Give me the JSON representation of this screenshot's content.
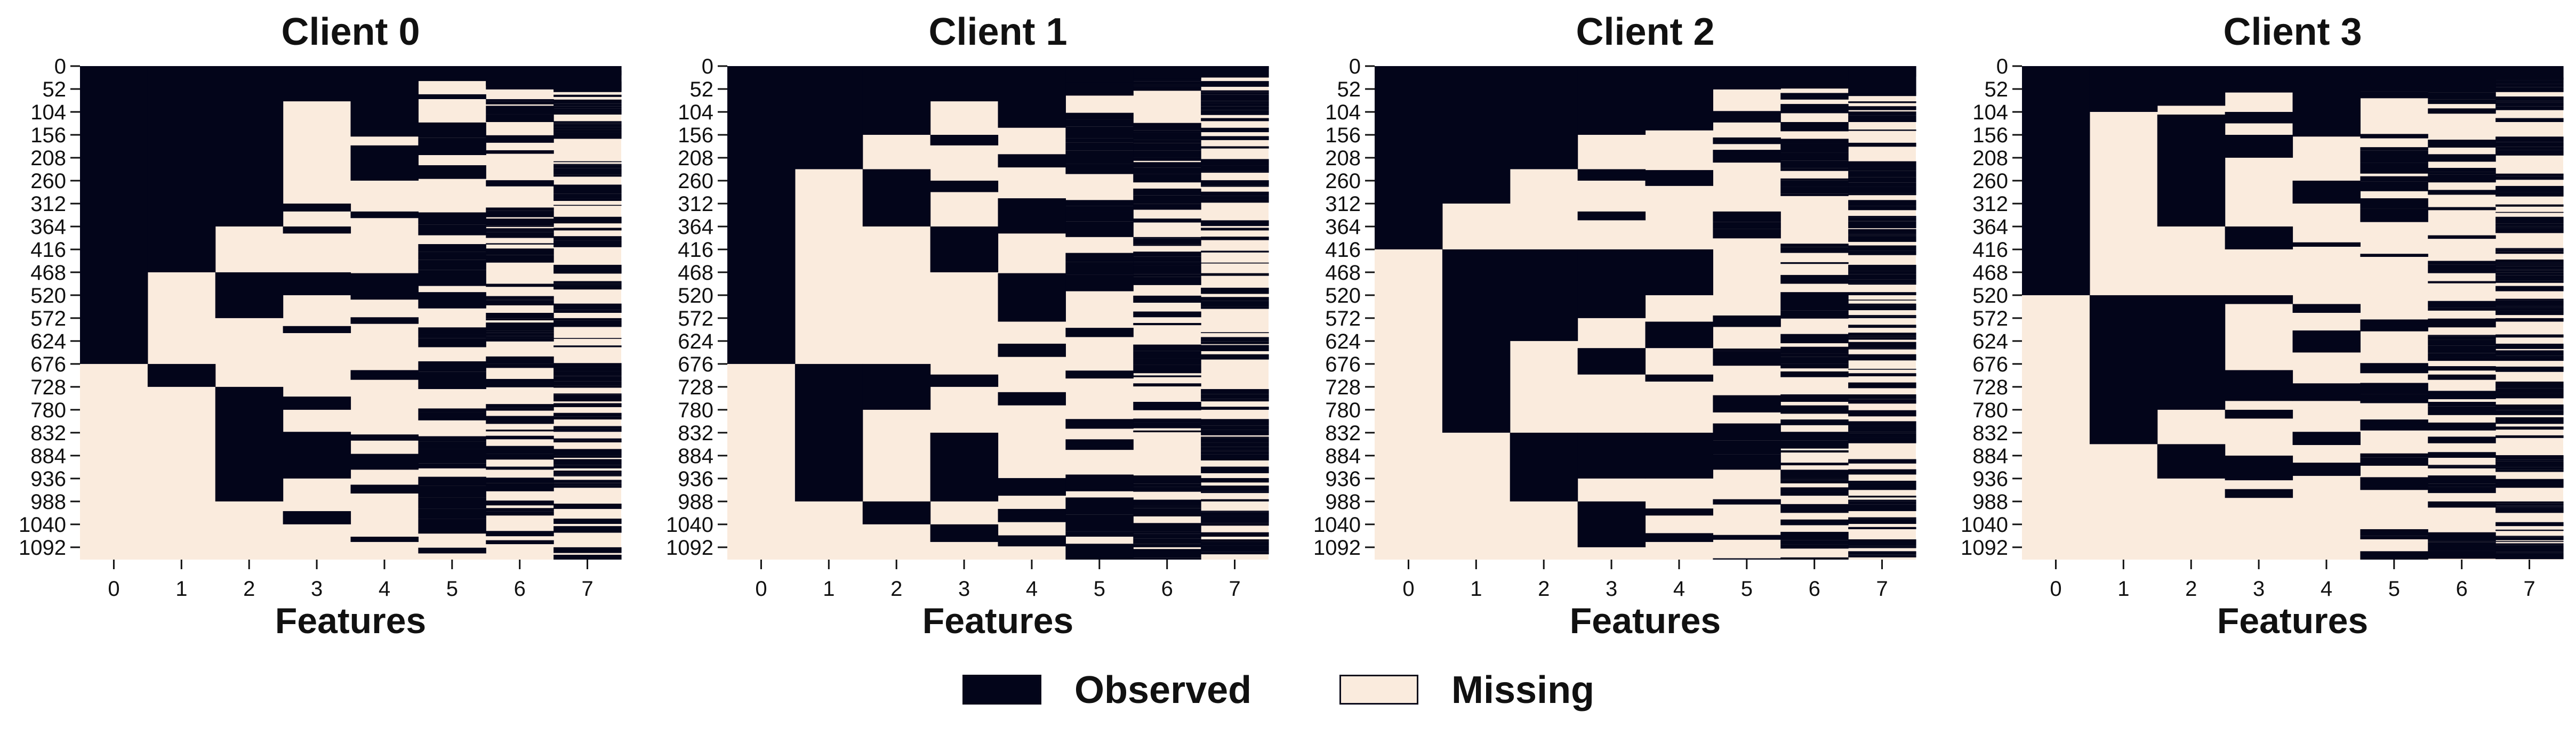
{
  "colors": {
    "observed": "#03051a",
    "missing": "#faebdd",
    "text": "#111111"
  },
  "legend": {
    "observed_label": "Observed",
    "missing_label": "Missing"
  },
  "chart_data": [
    {
      "type": "heatmap",
      "title": "Client 0",
      "xlabel": "Features",
      "ylabel": "",
      "x_ticks": [
        "0",
        "1",
        "2",
        "3",
        "4",
        "5",
        "6",
        "7"
      ],
      "y_ticks": [
        "0",
        "52",
        "104",
        "156",
        "208",
        "260",
        "312",
        "364",
        "416",
        "468",
        "520",
        "572",
        "624",
        "676",
        "728",
        "780",
        "832",
        "884",
        "936",
        "988",
        "1040",
        "1092"
      ],
      "n_rows": 1120,
      "observed_row_ranges": [
        [
          [
            0,
            676
          ]
        ],
        [
          [
            0,
            468
          ],
          [
            676,
            728
          ]
        ],
        [
          [
            0,
            364
          ],
          [
            468,
            572
          ],
          [
            728,
            988
          ]
        ],
        [
          [
            0,
            80
          ],
          [
            312,
            330
          ],
          [
            364,
            380
          ],
          [
            468,
            520
          ],
          [
            590,
            606
          ],
          [
            750,
            780
          ],
          [
            830,
            936
          ],
          [
            1010,
            1040
          ]
        ],
        [
          [
            0,
            160
          ],
          [
            180,
            260
          ],
          [
            330,
            345
          ],
          [
            470,
            530
          ],
          [
            570,
            585
          ],
          [
            690,
            712
          ],
          [
            836,
            850
          ],
          [
            880,
            916
          ],
          [
            950,
            970
          ],
          [
            1068,
            1080
          ]
        ],
        "dense",
        "dense",
        "dense"
      ]
    },
    {
      "type": "heatmap",
      "title": "Client 1",
      "xlabel": "Features",
      "ylabel": "",
      "x_ticks": [
        "0",
        "1",
        "2",
        "3",
        "4",
        "5",
        "6",
        "7"
      ],
      "y_ticks": [
        "0",
        "52",
        "104",
        "156",
        "208",
        "260",
        "312",
        "364",
        "416",
        "468",
        "520",
        "572",
        "624",
        "676",
        "728",
        "780",
        "832",
        "884",
        "936",
        "988",
        "1040",
        "1092"
      ],
      "n_rows": 1120,
      "observed_row_ranges": [
        [
          [
            0,
            676
          ]
        ],
        [
          [
            0,
            234
          ],
          [
            676,
            988
          ]
        ],
        [
          [
            0,
            156
          ],
          [
            234,
            364
          ],
          [
            676,
            780
          ],
          [
            988,
            1040
          ]
        ],
        [
          [
            0,
            80
          ],
          [
            156,
            180
          ],
          [
            260,
            286
          ],
          [
            364,
            468
          ],
          [
            700,
            728
          ],
          [
            832,
            988
          ],
          [
            1040,
            1080
          ]
        ],
        [
          [
            0,
            140
          ],
          [
            200,
            230
          ],
          [
            300,
            380
          ],
          [
            470,
            580
          ],
          [
            630,
            660
          ],
          [
            740,
            770
          ],
          [
            935,
            975
          ],
          [
            1005,
            1035
          ],
          [
            1065,
            1090
          ]
        ],
        "dense",
        "dense",
        "dense"
      ]
    },
    {
      "type": "heatmap",
      "title": "Client 2",
      "xlabel": "Features",
      "ylabel": "",
      "x_ticks": [
        "0",
        "1",
        "2",
        "3",
        "4",
        "5",
        "6",
        "7"
      ],
      "y_ticks": [
        "0",
        "52",
        "104",
        "156",
        "208",
        "260",
        "312",
        "364",
        "416",
        "468",
        "520",
        "572",
        "624",
        "676",
        "728",
        "780",
        "832",
        "884",
        "936",
        "988",
        "1040",
        "1092"
      ],
      "n_rows": 1120,
      "observed_row_ranges": [
        [
          [
            0,
            416
          ]
        ],
        [
          [
            0,
            312
          ],
          [
            416,
            832
          ]
        ],
        [
          [
            0,
            234
          ],
          [
            416,
            624
          ],
          [
            832,
            988
          ]
        ],
        [
          [
            0,
            156
          ],
          [
            234,
            260
          ],
          [
            330,
            350
          ],
          [
            416,
            572
          ],
          [
            640,
            700
          ],
          [
            832,
            936
          ],
          [
            988,
            1092
          ]
        ],
        [
          [
            0,
            146
          ],
          [
            236,
            272
          ],
          [
            416,
            520
          ],
          [
            580,
            640
          ],
          [
            700,
            716
          ],
          [
            832,
            936
          ],
          [
            1004,
            1020
          ],
          [
            1060,
            1080
          ]
        ],
        "dense",
        "dense",
        "dense"
      ]
    },
    {
      "type": "heatmap",
      "title": "Client 3",
      "xlabel": "Features",
      "ylabel": "",
      "x_ticks": [
        "0",
        "1",
        "2",
        "3",
        "4",
        "5",
        "6",
        "7"
      ],
      "y_ticks": [
        "0",
        "52",
        "104",
        "156",
        "208",
        "260",
        "312",
        "364",
        "416",
        "468",
        "520",
        "572",
        "624",
        "676",
        "728",
        "780",
        "832",
        "884",
        "936",
        "988",
        "1040",
        "1092"
      ],
      "n_rows": 1120,
      "observed_row_ranges": [
        [
          [
            0,
            520
          ]
        ],
        [
          [
            0,
            104
          ],
          [
            520,
            858
          ]
        ],
        [
          [
            0,
            90
          ],
          [
            110,
            364
          ],
          [
            520,
            780
          ],
          [
            858,
            936
          ]
        ],
        [
          [
            0,
            60
          ],
          [
            104,
            130
          ],
          [
            156,
            208
          ],
          [
            364,
            416
          ],
          [
            520,
            540
          ],
          [
            690,
            760
          ],
          [
            780,
            800
          ],
          [
            884,
            940
          ],
          [
            960,
            980
          ]
        ],
        [
          [
            0,
            160
          ],
          [
            260,
            312
          ],
          [
            400,
            410
          ],
          [
            540,
            560
          ],
          [
            600,
            650
          ],
          [
            720,
            760
          ],
          [
            830,
            860
          ],
          [
            900,
            930
          ]
        ],
        "dense",
        "dense",
        "dense"
      ]
    }
  ]
}
